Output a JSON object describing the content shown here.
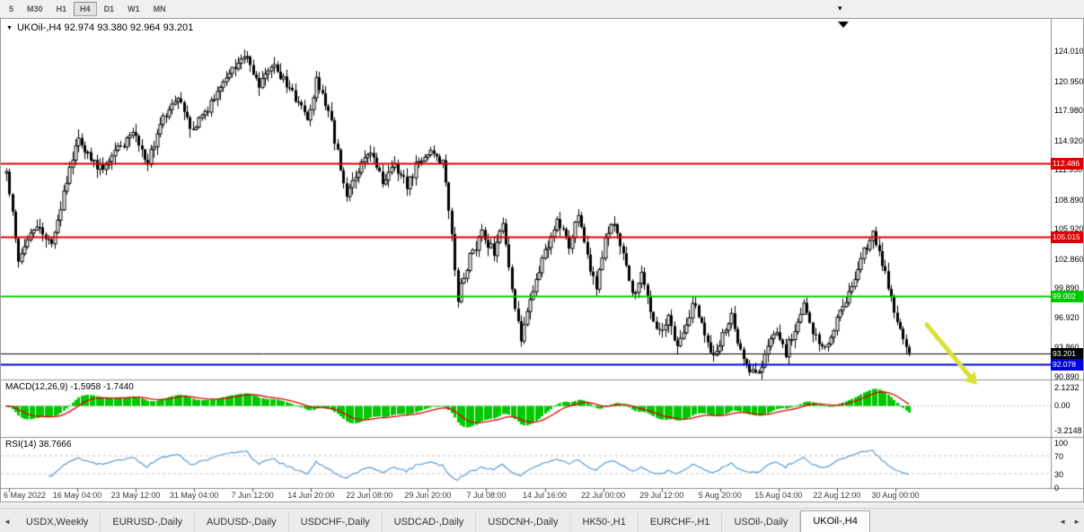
{
  "toolbar": {
    "timeframes": [
      "5",
      "M30",
      "H1",
      "H4",
      "D1",
      "W1",
      "MN"
    ],
    "active_timeframe": "H4"
  },
  "icons": {
    "chart_dropdown": "▼",
    "toolbar_marker": "▾",
    "tab_scroll_left": "◄",
    "tab_scroll_right": "►"
  },
  "chart": {
    "symbol": "UKOil-,H4",
    "title": "UKOil-,H4 92.974 93.380 92.964 93.201",
    "ohlc": {
      "open": "92.974",
      "high": "93.380",
      "low": "92.964",
      "close": "93.201"
    }
  },
  "chart_data": {
    "type": "candlestick",
    "symbol": "UKOil-",
    "timeframe": "H4",
    "current_price": 93.201,
    "candle_count": 301,
    "price_axis": [
      "124.010",
      "120.950",
      "117.980",
      "114.920",
      "111.950",
      "108.890",
      "105.920",
      "102.860",
      "99.890",
      "96.920",
      "93.860",
      "90.890"
    ],
    "time_axis": [
      "6 May 2022",
      "16 May 04:00",
      "23 May 12:00",
      "31 May 04:00",
      "7 Jun 12:00",
      "14 Jun 20:00",
      "22 Jun 08:00",
      "29 Jun 20:00",
      "7 Jul 08:00",
      "14 Jul 16:00",
      "22 Jul 00:00",
      "29 Jul 12:00",
      "5 Aug 20:00",
      "15 Aug 04:00",
      "22 Aug 12:00",
      "30 Aug 00:00"
    ],
    "hlines": [
      {
        "price": 112.486,
        "label": "112.486",
        "color": "#dd0000",
        "width": 2
      },
      {
        "price": 105.015,
        "label": "105.015",
        "color": "#dd0000",
        "width": 2
      },
      {
        "price": 99.002,
        "label": "99.002",
        "color": "#00c800",
        "width": 2
      },
      {
        "price": 93.201,
        "label": "93.201",
        "color": "#000000",
        "width": 1
      },
      {
        "price": 92.078,
        "label": "92.078",
        "color": "#0000dd",
        "width": 2
      }
    ],
    "indicators": {
      "macd": {
        "label": "MACD(12,26,9) -1.5958 -1.7440",
        "params": [
          12,
          26,
          9
        ],
        "values": [
          "-1.5958",
          "-1.7440"
        ],
        "axis": [
          "2.1232",
          "0.00",
          "-3.2148"
        ],
        "hist_color": "#00c800",
        "signal_color": "#e00000"
      },
      "rsi": {
        "label": "RSI(14) 38.7666",
        "period": 14,
        "value": "38.7666",
        "axis": [
          "100",
          "70",
          "30",
          "0"
        ],
        "levels": [
          70,
          30
        ],
        "color": "#5a9bd4"
      }
    },
    "annotation_arrow": {
      "direction": "down-right",
      "color": "#d9e036"
    },
    "waypoints": [
      [
        0,
        111.5
      ],
      [
        4,
        102.8
      ],
      [
        10,
        106.5
      ],
      [
        15,
        104.2
      ],
      [
        21,
        112.0
      ],
      [
        24,
        115.2
      ],
      [
        30,
        111.8
      ],
      [
        36,
        113.5
      ],
      [
        42,
        115.5
      ],
      [
        47,
        112.8
      ],
      [
        52,
        117.0
      ],
      [
        57,
        119.0
      ],
      [
        62,
        115.8
      ],
      [
        68,
        118.5
      ],
      [
        73,
        121.0
      ],
      [
        79,
        123.6
      ],
      [
        84,
        120.5
      ],
      [
        89,
        122.3
      ],
      [
        95,
        119.5
      ],
      [
        100,
        117.2
      ],
      [
        103,
        120.8
      ],
      [
        107,
        118.0
      ],
      [
        110,
        113.5
      ],
      [
        113,
        108.8
      ],
      [
        117,
        112.0
      ],
      [
        121,
        113.8
      ],
      [
        125,
        110.5
      ],
      [
        129,
        112.5
      ],
      [
        133,
        110.2
      ],
      [
        137,
        112.8
      ],
      [
        141,
        114.2
      ],
      [
        145,
        112.5
      ],
      [
        147,
        108.0
      ],
      [
        150,
        98.8
      ],
      [
        154,
        103.0
      ],
      [
        158,
        105.3
      ],
      [
        162,
        103.5
      ],
      [
        165,
        106.2
      ],
      [
        168,
        99.5
      ],
      [
        171,
        94.8
      ],
      [
        175,
        99.8
      ],
      [
        179,
        103.5
      ],
      [
        183,
        106.8
      ],
      [
        187,
        104.0
      ],
      [
        190,
        107.2
      ],
      [
        193,
        103.0
      ],
      [
        196,
        99.8
      ],
      [
        199,
        104.5
      ],
      [
        202,
        106.5
      ],
      [
        205,
        103.0
      ],
      [
        208,
        99.0
      ],
      [
        211,
        101.5
      ],
      [
        214,
        97.5
      ],
      [
        217,
        95.2
      ],
      [
        220,
        96.8
      ],
      [
        223,
        93.8
      ],
      [
        226,
        96.5
      ],
      [
        229,
        98.5
      ],
      [
        232,
        95.0
      ],
      [
        235,
        92.5
      ],
      [
        238,
        94.8
      ],
      [
        241,
        96.8
      ],
      [
        244,
        93.5
      ],
      [
        247,
        91.2
      ],
      [
        250,
        90.9
      ],
      [
        253,
        93.5
      ],
      [
        256,
        95.5
      ],
      [
        259,
        93.2
      ],
      [
        262,
        95.8
      ],
      [
        265,
        97.8
      ],
      [
        268,
        95.5
      ],
      [
        271,
        93.4
      ],
      [
        274,
        95.2
      ],
      [
        277,
        97.5
      ],
      [
        280,
        99.5
      ],
      [
        283,
        101.8
      ],
      [
        286,
        104.2
      ],
      [
        288,
        105.3
      ],
      [
        291,
        102.5
      ],
      [
        294,
        99.0
      ],
      [
        297,
        95.3
      ],
      [
        300,
        93.2
      ]
    ]
  },
  "tabbar": {
    "tabs": [
      "USDX,Weekly",
      "EURUSD-,Daily",
      "AUDUSD-,Daily",
      "USDCHF-,Daily",
      "USDCAD-,Daily",
      "USDCNH-,Daily",
      "HK50-,H1",
      "EURCHF-,H1",
      "USOil-,Daily",
      "UKOil-,H4"
    ],
    "active_tab": "UKOil-,H4"
  }
}
